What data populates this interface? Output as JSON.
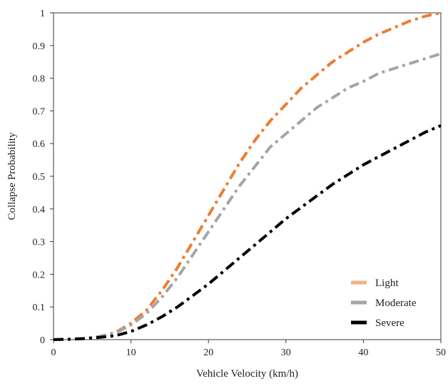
{
  "chart_data": {
    "type": "line",
    "title": "",
    "xlabel": "Vehicle Velocity (km/h)",
    "ylabel": "Collapse Probability",
    "xlim": [
      0,
      50
    ],
    "ylim": [
      0,
      1
    ],
    "xticks": [
      0,
      10,
      20,
      30,
      40,
      50
    ],
    "xtick_labels": [
      "0",
      "10",
      "20",
      "30",
      "40",
      "50"
    ],
    "yticks": [
      0,
      0.1,
      0.2,
      0.3,
      0.4,
      0.5,
      0.6,
      0.7,
      0.8,
      0.9,
      1
    ],
    "ytick_labels": [
      "0",
      "0.1",
      "0.2",
      "0.3",
      "0.4",
      "0.5",
      "0.6",
      "0.7",
      "0.8",
      "0.9",
      "1"
    ],
    "grid": false,
    "legend_position": "bottom-right",
    "x": [
      0,
      2,
      4,
      6,
      8,
      10,
      12,
      14,
      16,
      18,
      20,
      22,
      24,
      26,
      28,
      30,
      32,
      34,
      36,
      38,
      40,
      42,
      44,
      46,
      48,
      50
    ],
    "series": [
      {
        "name": "Light",
        "color": "#ED7D31",
        "values": [
          0,
          0.001,
          0.004,
          0.01,
          0.022,
          0.05,
          0.09,
          0.15,
          0.22,
          0.3,
          0.38,
          0.46,
          0.54,
          0.61,
          0.67,
          0.72,
          0.77,
          0.81,
          0.85,
          0.88,
          0.91,
          0.935,
          0.955,
          0.975,
          0.99,
          1.0
        ]
      },
      {
        "name": "Moderate",
        "color": "#A5A5A5",
        "values": [
          0,
          0.001,
          0.004,
          0.01,
          0.02,
          0.045,
          0.08,
          0.13,
          0.19,
          0.26,
          0.33,
          0.4,
          0.47,
          0.53,
          0.59,
          0.63,
          0.67,
          0.71,
          0.74,
          0.77,
          0.79,
          0.815,
          0.83,
          0.845,
          0.86,
          0.875
        ]
      },
      {
        "name": "Severe",
        "color": "#000000",
        "values": [
          0,
          0.001,
          0.003,
          0.007,
          0.012,
          0.025,
          0.045,
          0.07,
          0.1,
          0.135,
          0.17,
          0.21,
          0.25,
          0.29,
          0.33,
          0.37,
          0.405,
          0.44,
          0.475,
          0.505,
          0.535,
          0.56,
          0.585,
          0.61,
          0.635,
          0.655
        ]
      }
    ]
  }
}
